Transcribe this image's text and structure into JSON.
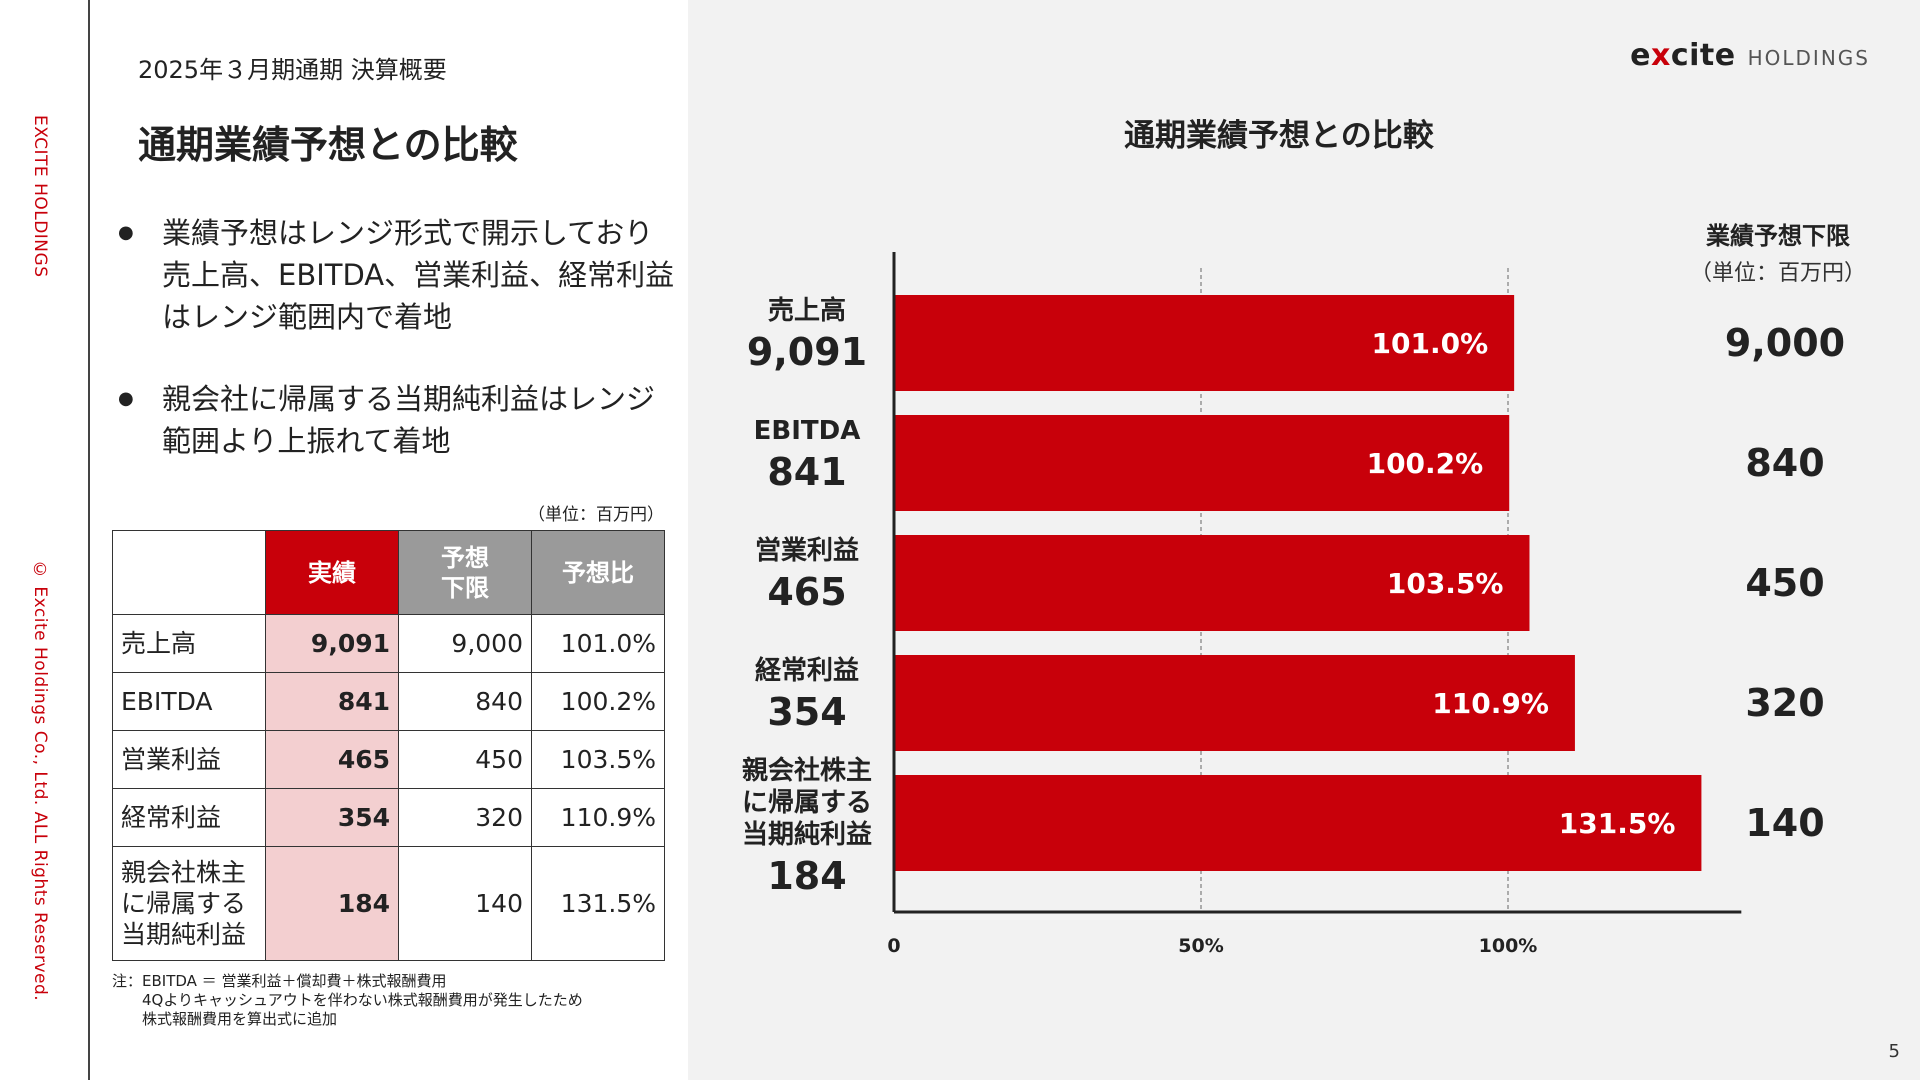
{
  "sidebar": {
    "brand": "EXCITE HOLDINGS",
    "copyright": "© Excite Holdings Co., Ltd. ALL Rights Reserved."
  },
  "header": {
    "subtitle": "2025年３月期通期 決算概要",
    "title": "通期業績予想との比較"
  },
  "bullets": [
    "業績予想はレンジ形式で開示しており\n売上高、EBITDA、営業利益、経常利益\nはレンジ範囲内で着地",
    "親会社に帰属する当期純利益はレンジ\n範囲より上振れて着地"
  ],
  "table": {
    "unit": "（単位：百万円）",
    "headers": [
      "",
      "実績",
      "予想\n下限",
      "予想比"
    ],
    "rows": [
      {
        "label": "売上高",
        "actual": "9,091",
        "forecast": "9,000",
        "ratio": "101.0%"
      },
      {
        "label": "EBITDA",
        "actual": "841",
        "forecast": "840",
        "ratio": "100.2%"
      },
      {
        "label": "営業利益",
        "actual": "465",
        "forecast": "450",
        "ratio": "103.5%"
      },
      {
        "label": "経常利益",
        "actual": "354",
        "forecast": "320",
        "ratio": "110.9%"
      },
      {
        "label": "親会社株主\nに帰属する\n当期純利益",
        "actual": "184",
        "forecast": "140",
        "ratio": "131.5%"
      }
    ]
  },
  "footnote": "注：EBITDA ＝ 営業利益＋償却費＋株式報酬費用\n　　4Qよりキャッシュアウトを伴わない株式報酬費用が発生したため\n　　株式報酬費用を算出式に追加",
  "logo": {
    "word_pre": "e",
    "word_x": "x",
    "word_post": "cite",
    "holdings": "HOLDINGS"
  },
  "page_number": "5",
  "colors": {
    "accent": "#c8000a",
    "bar": "#c8000a",
    "highlight": "#f3cfd0",
    "header_grey": "#9a9a9a"
  },
  "chart_data": {
    "type": "bar",
    "orientation": "horizontal",
    "title": "通期業績予想との比較",
    "right_header": "業績予想下限",
    "right_unit": "（単位：百万円）",
    "categories": [
      "売上高",
      "EBITDA",
      "営業利益",
      "経常利益",
      "親会社株主\nに帰属する\n当期純利益"
    ],
    "actual_labels": [
      "9,091",
      "841",
      "465",
      "354",
      "184"
    ],
    "values": [
      101.0,
      100.2,
      103.5,
      110.9,
      131.5
    ],
    "value_labels": [
      "101.0%",
      "100.2%",
      "103.5%",
      "110.9%",
      "131.5%"
    ],
    "forecast_lower": [
      "9,000",
      "840",
      "450",
      "320",
      "140"
    ],
    "xticks": [
      0,
      50,
      100
    ],
    "xtick_labels": [
      "0",
      "50%",
      "100%"
    ],
    "xlim": [
      0,
      138
    ],
    "gridlines": [
      50,
      100
    ],
    "grid": "dashed vertical at 50% and 100%"
  }
}
